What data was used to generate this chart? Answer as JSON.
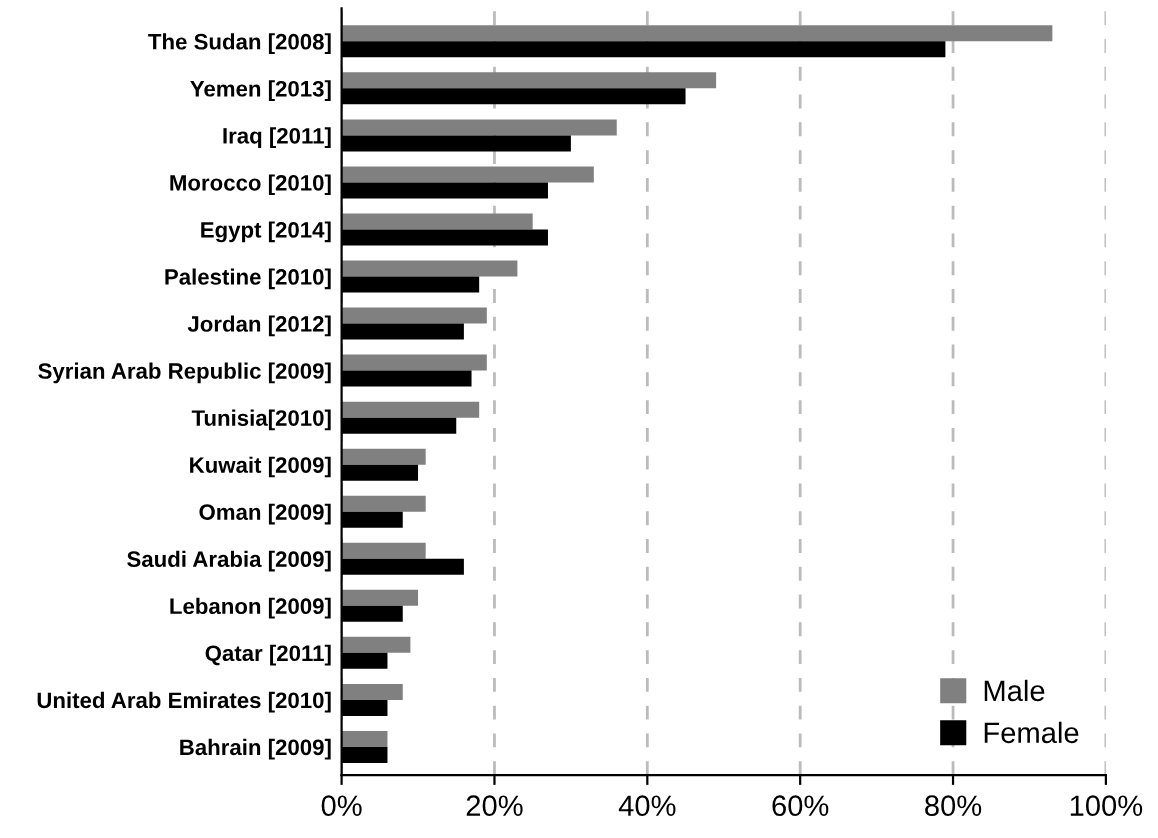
{
  "chart_data": {
    "type": "bar",
    "orientation": "horizontal",
    "categories": [
      "The Sudan [2008]",
      "Yemen [2013]",
      "Iraq [2011]",
      "Morocco [2010]",
      "Egypt [2014]",
      "Palestine [2010]",
      "Jordan [2012]",
      "Syrian Arab Republic [2009]",
      "Tunisia[2010]",
      "Kuwait [2009]",
      "Oman [2009]",
      "Saudi Arabia [2009]",
      "Lebanon [2009]",
      "Qatar [2011]",
      "United Arab Emirates [2010]",
      "Bahrain [2009]"
    ],
    "series": [
      {
        "name": "Male",
        "color": "#808080",
        "values": [
          93,
          49,
          36,
          33,
          25,
          23,
          19,
          19,
          18,
          11,
          11,
          11,
          10,
          9,
          8,
          6
        ]
      },
      {
        "name": "Female",
        "color": "#000000",
        "values": [
          79,
          45,
          30,
          27,
          27,
          18,
          16,
          17,
          15,
          10,
          8,
          16,
          8,
          6,
          6,
          6
        ]
      }
    ],
    "xlim": [
      0,
      100
    ],
    "xticks": [
      {
        "value": 0,
        "label": "0%"
      },
      {
        "value": 20,
        "label": "20%"
      },
      {
        "value": 40,
        "label": "40%"
      },
      {
        "value": 60,
        "label": "60%"
      },
      {
        "value": 80,
        "label": "80%"
      },
      {
        "value": 100,
        "label": "100%"
      }
    ],
    "grid": "x",
    "legend": "bottom right"
  }
}
